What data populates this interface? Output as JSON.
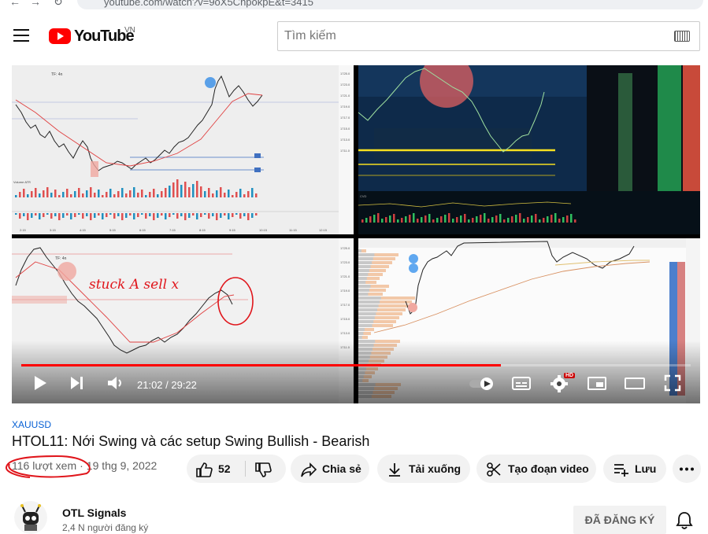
{
  "browser": {
    "url": "youtube.com/watch?v=9oX5ChpokpE&t=3415"
  },
  "header": {
    "logo_text": "YouTube",
    "country_code": "VN",
    "search_placeholder": "Tìm kiếm"
  },
  "player": {
    "current_time": "21:02",
    "duration": "29:22",
    "time_display": "21:02 / 29:22",
    "progress": 0.716,
    "quality_badge": "HD",
    "annotation_text": "stuck A sell x",
    "chart_labels": {
      "tf1": "TF: 4n",
      "tf2": "TF: 4n"
    },
    "price_ticks": [
      "1725.0",
      "1723.0",
      "1721.0",
      "1719.0",
      "1717.0",
      "1715.0",
      "1713.0",
      "1711.0"
    ],
    "time_ticks": [
      "2:15",
      "3:15",
      "4:15",
      "5:15",
      "6:15",
      "7:15",
      "8:15",
      "9:15",
      "10:15",
      "11:15",
      "12:15"
    ]
  },
  "video": {
    "hashtag": "XAUUSD",
    "title": "HTOL11: Nới Swing và các setup Swing Bullish - Bearish",
    "views": "116 lượt xem",
    "date": "19 thg 9, 2022"
  },
  "actions": {
    "likes": "52",
    "share": "Chia sẻ",
    "download": "Tải xuống",
    "clip": "Tạo đoạn video",
    "save": "Lưu"
  },
  "channel": {
    "name": "OTL Signals",
    "subscribers": "2,4 N người đăng ký",
    "subscribe_label": "ĐÃ ĐĂNG KÝ"
  },
  "colors": {
    "brand_red": "#ff0000",
    "link_blue": "#065fd4",
    "annotation_red": "#e0151b"
  }
}
